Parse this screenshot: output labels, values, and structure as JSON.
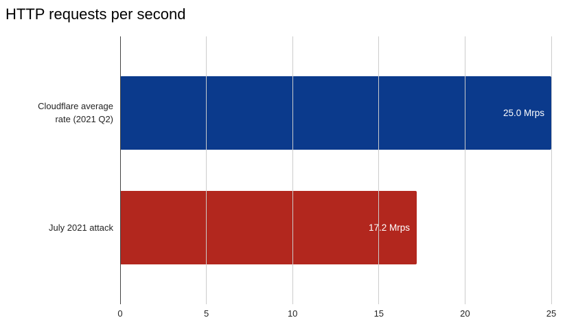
{
  "title": "HTTP requests per second",
  "chart_data": {
    "type": "bar",
    "orientation": "horizontal",
    "title": "HTTP requests per second",
    "categories": [
      "Cloudflare average rate (2021 Q2)",
      "July 2021 attack"
    ],
    "category_labels_display": [
      "Cloudflare average\nrate (2021 Q2)",
      "July 2021 attack"
    ],
    "values": [
      25.0,
      17.2
    ],
    "value_labels": [
      "25.0 Mrps",
      "17.2 Mrps"
    ],
    "unit": "Mrps",
    "bar_colors": [
      "#0b3a8c",
      "#b2271e"
    ],
    "xlabel": "",
    "ylabel": "",
    "xlim": [
      0,
      25
    ],
    "xticks": [
      0,
      5,
      10,
      15,
      20,
      25
    ],
    "grid": true,
    "legend": "none"
  },
  "colors": {
    "background": "#ffffff",
    "title_text": "#000000",
    "bar_blue": "#0b3a8c",
    "bar_red": "#b2271e",
    "gridline": "#cccccc",
    "axis_baseline": "#424242",
    "axis_text": "#222222",
    "value_label_text": "#ffffff"
  }
}
